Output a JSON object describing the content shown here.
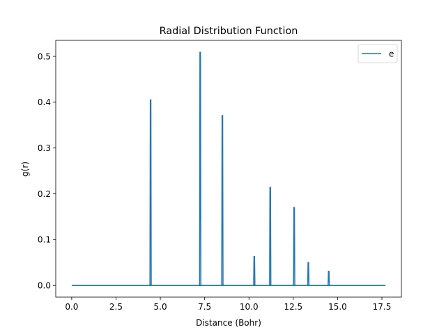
{
  "chart_data": {
    "type": "line",
    "title": "Radial Distribution Function",
    "xlabel": "Distance (Bohr)",
    "ylabel": "g(r)",
    "xlim": [
      -0.9,
      18.6
    ],
    "ylim": [
      -0.0255,
      0.535
    ],
    "xticks": [
      0.0,
      2.5,
      5.0,
      7.5,
      10.0,
      12.5,
      15.0,
      17.5
    ],
    "xtick_labels": [
      "0.0",
      "2.5",
      "5.0",
      "7.5",
      "10.0",
      "12.5",
      "15.0",
      "17.5"
    ],
    "yticks": [
      0.0,
      0.1,
      0.2,
      0.3,
      0.4,
      0.5
    ],
    "ytick_labels": [
      "0.0",
      "0.1",
      "0.2",
      "0.3",
      "0.4",
      "0.5"
    ],
    "grid": false,
    "legend_position": "upper right",
    "series": [
      {
        "name": "e",
        "color": "#1f77b4",
        "x_range": [
          0.0,
          17.7
        ],
        "baseline": 0.0,
        "peaks": [
          {
            "x": 4.45,
            "y": 0.405
          },
          {
            "x": 7.25,
            "y": 0.509
          },
          {
            "x": 8.5,
            "y": 0.371
          },
          {
            "x": 10.3,
            "y": 0.063
          },
          {
            "x": 11.2,
            "y": 0.214
          },
          {
            "x": 12.55,
            "y": 0.17
          },
          {
            "x": 13.35,
            "y": 0.05
          },
          {
            "x": 14.5,
            "y": 0.031
          }
        ]
      }
    ]
  }
}
